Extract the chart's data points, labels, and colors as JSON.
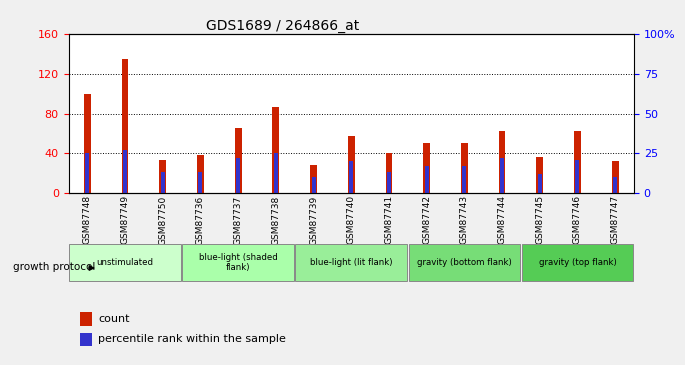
{
  "title": "GDS1689 / 264866_at",
  "samples": [
    "GSM87748",
    "GSM87749",
    "GSM87750",
    "GSM87736",
    "GSM87737",
    "GSM87738",
    "GSM87739",
    "GSM87740",
    "GSM87741",
    "GSM87742",
    "GSM87743",
    "GSM87744",
    "GSM87745",
    "GSM87746",
    "GSM87747"
  ],
  "counts": [
    100,
    135,
    33,
    38,
    65,
    87,
    28,
    57,
    40,
    50,
    50,
    62,
    36,
    62,
    32
  ],
  "percentile_display": [
    25,
    27,
    13,
    13,
    22,
    25,
    10,
    20,
    13,
    17,
    17,
    22,
    12,
    21,
    10
  ],
  "bar_color": "#cc2200",
  "blue_color": "#3333cc",
  "ylim": [
    0,
    160
  ],
  "yticks_left": [
    0,
    40,
    80,
    120,
    160
  ],
  "yticks_right": [
    0,
    25,
    50,
    75,
    100
  ],
  "yticklabels_right": [
    "0",
    "25",
    "50",
    "75",
    "100%"
  ],
  "groups": [
    {
      "label": "unstimulated",
      "start": 0,
      "end": 3,
      "color": "#ccffcc"
    },
    {
      "label": "blue-light (shaded\nflank)",
      "start": 3,
      "end": 6,
      "color": "#aaffaa"
    },
    {
      "label": "blue-light (lit flank)",
      "start": 6,
      "end": 9,
      "color": "#99ee99"
    },
    {
      "label": "gravity (bottom flank)",
      "start": 9,
      "end": 12,
      "color": "#77dd77"
    },
    {
      "label": "gravity (top flank)",
      "start": 12,
      "end": 15,
      "color": "#55cc55"
    }
  ],
  "growth_protocol_label": "growth protocol",
  "legend_count_label": "count",
  "legend_percentile_label": "percentile rank within the sample",
  "plot_bg_color": "#ffffff",
  "tick_bg_color": "#d0d0d0",
  "fig_bg_color": "#f0f0f0"
}
